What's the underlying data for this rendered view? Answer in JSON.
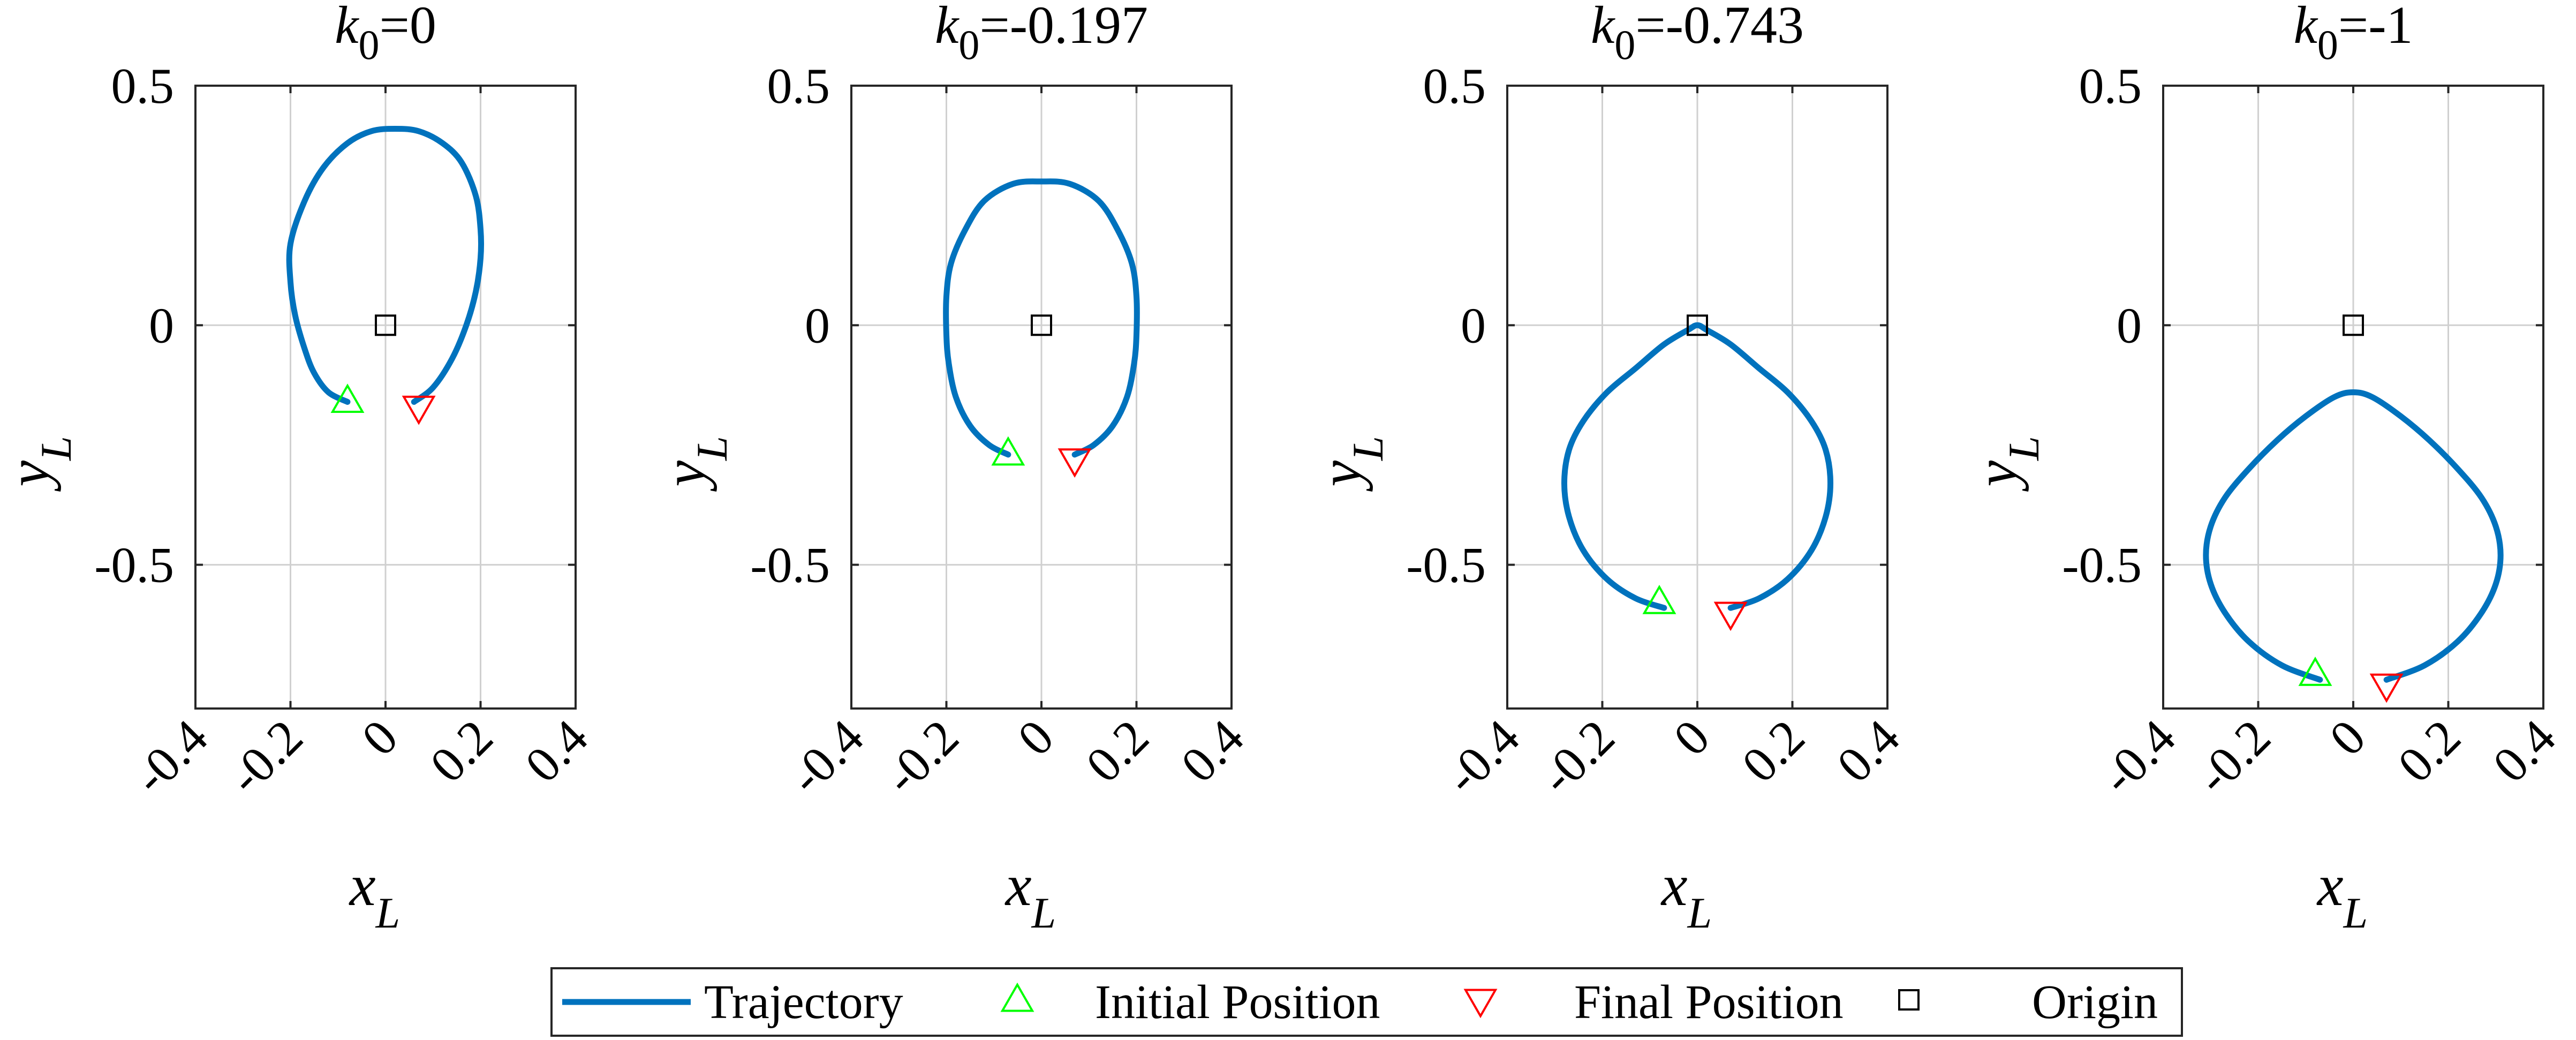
{
  "figure": {
    "colors": {
      "trajectory": "#0072BD",
      "initial": "#00FF00",
      "final": "#FF0000",
      "origin": "#000000",
      "grid": "#D0D0D0",
      "axes": "#262626"
    },
    "legend": {
      "placement": "bottom-center",
      "items": [
        {
          "label": "Trajectory",
          "marker": "line"
        },
        {
          "label": "Initial Position",
          "marker": "triangle-up"
        },
        {
          "label": "Final Position",
          "marker": "triangle-down"
        },
        {
          "label": "Origin",
          "marker": "square"
        }
      ]
    }
  },
  "chart_data": [
    {
      "type": "line",
      "title_symbol": "k",
      "title_sub": "0",
      "title_value": "=0",
      "xlabel": "x",
      "xlabel_sub": "L",
      "ylabel": "y",
      "ylabel_sub": "L",
      "xlim": [
        -0.4,
        0.4
      ],
      "ylim": [
        -0.8,
        0.5
      ],
      "grid": true,
      "xticks": [
        "-0.4",
        "-0.2",
        "0",
        "0.2",
        "0.4"
      ],
      "yticks": [
        "0.5",
        "0",
        "-0.5"
      ],
      "series": [
        {
          "x": [
            0.06,
            0.1,
            0.14,
            0.17,
            0.19,
            0.2,
            0.2,
            0.19,
            0.16,
            0.12,
            0.07,
            0.02,
            -0.03,
            -0.08,
            -0.13,
            -0.17,
            -0.2,
            -0.2,
            -0.19,
            -0.17,
            -0.15,
            -0.12,
            -0.08
          ],
          "y": [
            -0.16,
            -0.13,
            -0.07,
            0.0,
            0.07,
            0.14,
            0.2,
            0.27,
            0.34,
            0.38,
            0.405,
            0.41,
            0.405,
            0.38,
            0.33,
            0.26,
            0.17,
            0.09,
            0.02,
            -0.05,
            -0.1,
            -0.14,
            -0.16
          ]
        }
      ],
      "initial": [
        -0.08,
        -0.16
      ],
      "final": [
        0.07,
        -0.17
      ],
      "origin": [
        0,
        0
      ]
    },
    {
      "type": "line",
      "title_symbol": "k",
      "title_sub": "0",
      "title_value": "=-0.197",
      "xlabel": "x",
      "xlabel_sub": "L",
      "ylabel": "y",
      "ylabel_sub": "L",
      "xlim": [
        -0.4,
        0.4
      ],
      "ylim": [
        -0.8,
        0.5
      ],
      "grid": true,
      "xticks": [
        "-0.4",
        "-0.2",
        "0",
        "0.2",
        "0.4"
      ],
      "yticks": [
        "0.5",
        "0",
        "-0.5"
      ],
      "series": [
        {
          "x": [
            0.07,
            0.11,
            0.15,
            0.18,
            0.195,
            0.2,
            0.2,
            0.19,
            0.16,
            0.12,
            0.06,
            0.0,
            -0.06,
            -0.12,
            -0.16,
            -0.19,
            -0.2,
            -0.2,
            -0.195,
            -0.18,
            -0.15,
            -0.11,
            -0.07
          ],
          "y": [
            -0.27,
            -0.25,
            -0.21,
            -0.15,
            -0.08,
            -0.02,
            0.06,
            0.13,
            0.2,
            0.26,
            0.295,
            0.3,
            0.295,
            0.26,
            0.2,
            0.13,
            0.06,
            -0.02,
            -0.08,
            -0.15,
            -0.21,
            -0.25,
            -0.27
          ]
        }
      ],
      "initial": [
        -0.07,
        -0.27
      ],
      "final": [
        0.07,
        -0.28
      ],
      "origin": [
        0,
        0
      ]
    },
    {
      "type": "line",
      "title_symbol": "k",
      "title_sub": "0",
      "title_value": "=-0.743",
      "xlabel": "x",
      "xlabel_sub": "L",
      "ylabel": "y",
      "ylabel_sub": "L",
      "xlim": [
        -0.4,
        0.4
      ],
      "ylim": [
        -0.8,
        0.5
      ],
      "grid": true,
      "xticks": [
        "-0.4",
        "-0.2",
        "0",
        "0.2",
        "0.4"
      ],
      "yticks": [
        "0.5",
        "0",
        "-0.5"
      ],
      "series": [
        {
          "x": [
            0.07,
            0.13,
            0.19,
            0.24,
            0.27,
            0.28,
            0.27,
            0.24,
            0.19,
            0.13,
            0.07,
            0.02,
            0.0,
            -0.02,
            -0.07,
            -0.13,
            -0.19,
            -0.24,
            -0.27,
            -0.28,
            -0.27,
            -0.24,
            -0.19,
            -0.13,
            -0.07
          ],
          "y": [
            -0.59,
            -0.57,
            -0.53,
            -0.47,
            -0.4,
            -0.33,
            -0.26,
            -0.2,
            -0.14,
            -0.09,
            -0.04,
            -0.01,
            0.0,
            -0.01,
            -0.04,
            -0.09,
            -0.14,
            -0.2,
            -0.26,
            -0.33,
            -0.4,
            -0.47,
            -0.53,
            -0.57,
            -0.59
          ]
        }
      ],
      "initial": [
        -0.08,
        -0.58
      ],
      "final": [
        0.07,
        -0.6
      ],
      "origin": [
        0,
        0
      ]
    },
    {
      "type": "line",
      "title_symbol": "k",
      "title_sub": "0",
      "title_value": "=-1",
      "xlabel": "x",
      "xlabel_sub": "L",
      "ylabel": "y",
      "ylabel_sub": "L",
      "xlim": [
        -0.4,
        0.4
      ],
      "ylim": [
        -0.8,
        0.5
      ],
      "grid": true,
      "xticks": [
        "-0.4",
        "-0.2",
        "0",
        "0.2",
        "0.4"
      ],
      "yticks": [
        "0.5",
        "0",
        "-0.5"
      ],
      "series": [
        {
          "x": [
            0.07,
            0.15,
            0.22,
            0.27,
            0.3,
            0.31,
            0.3,
            0.27,
            0.22,
            0.16,
            0.1,
            0.04,
            0.0,
            -0.04,
            -0.1,
            -0.16,
            -0.22,
            -0.27,
            -0.3,
            -0.31,
            -0.3,
            -0.27,
            -0.22,
            -0.15,
            -0.07
          ],
          "y": [
            -0.74,
            -0.71,
            -0.66,
            -0.6,
            -0.54,
            -0.48,
            -0.42,
            -0.36,
            -0.3,
            -0.24,
            -0.19,
            -0.15,
            -0.14,
            -0.15,
            -0.19,
            -0.24,
            -0.3,
            -0.36,
            -0.42,
            -0.48,
            -0.54,
            -0.6,
            -0.66,
            -0.71,
            -0.74
          ]
        }
      ],
      "initial": [
        -0.08,
        -0.73
      ],
      "final": [
        0.07,
        -0.75
      ],
      "origin": [
        0,
        0
      ]
    }
  ]
}
